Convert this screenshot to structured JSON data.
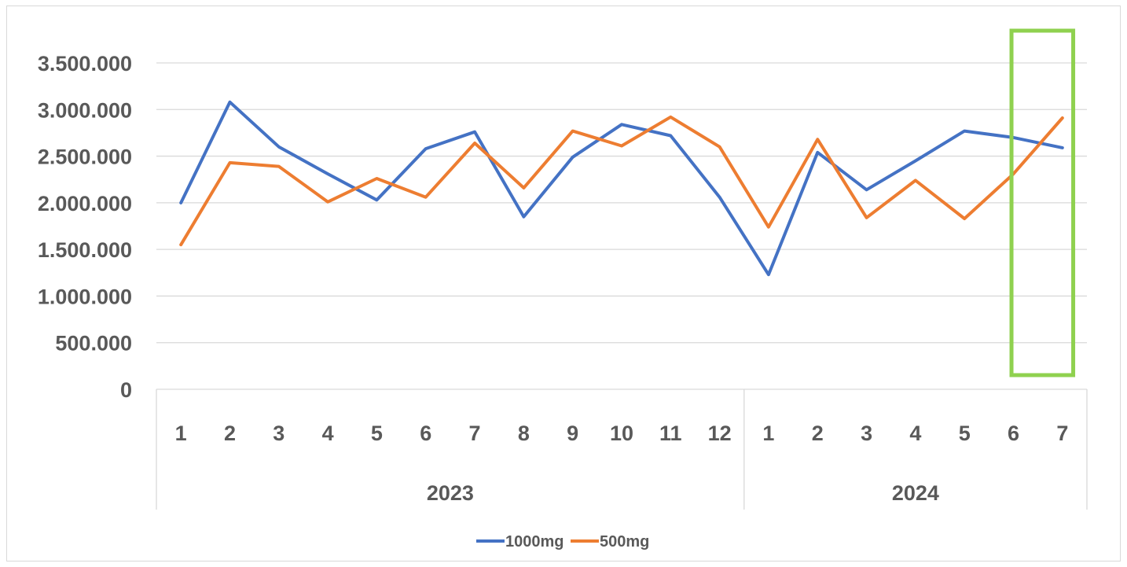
{
  "chart_data": {
    "type": "line",
    "ylim": [
      0,
      3500000
    ],
    "yticks": [
      {
        "value": 0,
        "label": "0"
      },
      {
        "value": 500000,
        "label": "500.000"
      },
      {
        "value": 1000000,
        "label": "1.000.000"
      },
      {
        "value": 1500000,
        "label": "1.500.000"
      },
      {
        "value": 2000000,
        "label": "2.000.000"
      },
      {
        "value": 2500000,
        "label": "2.500.000"
      },
      {
        "value": 3000000,
        "label": "3.000.000"
      },
      {
        "value": 3500000,
        "label": "3.500.000"
      }
    ],
    "categories": [
      "1",
      "2",
      "3",
      "4",
      "5",
      "6",
      "7",
      "8",
      "9",
      "10",
      "11",
      "12",
      "1",
      "2",
      "3",
      "4",
      "5",
      "6",
      "7"
    ],
    "groups": [
      {
        "label": "2023",
        "count": 12
      },
      {
        "label": "2024",
        "count": 7
      }
    ],
    "series": [
      {
        "name": "1000mg",
        "color": "#4472c4",
        "values": [
          2000000,
          3080000,
          2600000,
          2310000,
          2030000,
          2580000,
          2760000,
          1850000,
          2490000,
          2840000,
          2720000,
          2060000,
          1230000,
          2540000,
          2140000,
          2450000,
          2770000,
          2700000,
          2590000
        ]
      },
      {
        "name": "500mg",
        "color": "#ed7d31",
        "values": [
          1550000,
          2430000,
          2390000,
          2010000,
          2260000,
          2060000,
          2640000,
          2160000,
          2770000,
          2610000,
          2920000,
          2600000,
          1740000,
          2680000,
          1840000,
          2240000,
          1830000,
          2310000,
          2910000
        ]
      }
    ],
    "highlight": {
      "from_index": 17,
      "to_index": 18,
      "color": "#8fd14f"
    },
    "grid": true,
    "legend_position": "bottom"
  }
}
